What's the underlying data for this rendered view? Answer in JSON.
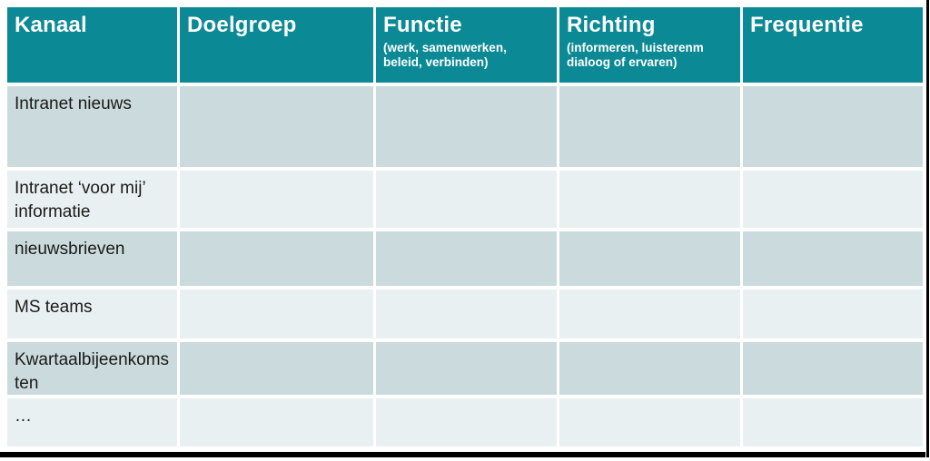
{
  "table": {
    "columns": [
      {
        "label": "Kanaal",
        "sub": ""
      },
      {
        "label": "Doelgroep",
        "sub": ""
      },
      {
        "label": "Functie",
        "sub": "(werk, samenwerken, beleid, verbinden)"
      },
      {
        "label": "Richting",
        "sub": "(informeren, luisterenm dialoog of ervaren)"
      },
      {
        "label": "Frequentie",
        "sub": ""
      }
    ],
    "rows": [
      {
        "kanaal": "Intranet nieuws",
        "doelgroep": "",
        "functie": "",
        "richting": "",
        "frequentie": ""
      },
      {
        "kanaal": "Intranet ‘voor mij’ informatie",
        "doelgroep": "",
        "functie": "",
        "richting": "",
        "frequentie": ""
      },
      {
        "kanaal": "nieuwsbrieven",
        "doelgroep": "",
        "functie": "",
        "richting": "",
        "frequentie": ""
      },
      {
        "kanaal": "MS teams",
        "doelgroep": "",
        "functie": "",
        "richting": "",
        "frequentie": ""
      },
      {
        "kanaal": "Kwartaalbijeenkomsten",
        "doelgroep": "",
        "functie": "",
        "richting": "",
        "frequentie": ""
      },
      {
        "kanaal": "…",
        "doelgroep": "",
        "functie": "",
        "richting": "",
        "frequentie": ""
      }
    ]
  },
  "colors": {
    "header_bg": "#0B8994",
    "row_dark": "#CBDBDD",
    "row_light": "#E9F0F1",
    "header_text": "#FFFFFF",
    "body_text": "#1A1A1A",
    "frame": "#000000"
  }
}
